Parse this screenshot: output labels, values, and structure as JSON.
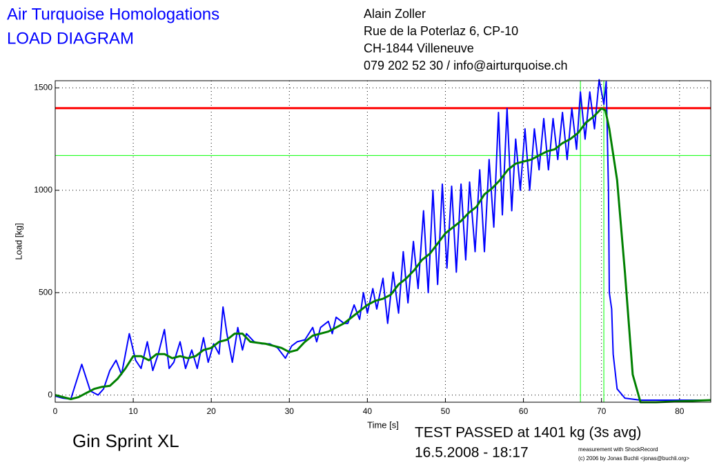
{
  "chart_data": {
    "type": "line",
    "title": "Air Turquoise Homologations",
    "subtitle": "LOAD DIAGRAM",
    "address": [
      "Alain Zoller",
      "Rue de la Poterlaz 6, CP-10",
      "CH-1844 Villeneuve",
      "079 202 52 30 / info@airturquoise.ch"
    ],
    "x_label": "Time [s]",
    "y_label": "Load [kg]",
    "glider": "Gin Sprint XL",
    "result": [
      "TEST PASSED at 1401 kg (3s avg)",
      "16.5.2008 - 18:17"
    ],
    "credits": [
      "measurement with ShockRecord",
      "(c) 2006 by Jonas Buchli <jonas@buchli.org>"
    ],
    "xlim": [
      0,
      84
    ],
    "ylim": [
      -35,
      1535
    ],
    "xticks": [
      0,
      10,
      20,
      30,
      40,
      50,
      60,
      70,
      80
    ],
    "yticks": [
      0,
      500,
      1000,
      1500
    ],
    "grid": true,
    "hlines": [
      {
        "value": 1401,
        "color": "#ff0000"
      },
      {
        "value": 1170,
        "color": "#00ff00"
      }
    ],
    "vlines": [
      {
        "value": 67.3,
        "color": "#00ff00"
      },
      {
        "value": 70.3,
        "color": "#00ff00"
      }
    ],
    "series": [
      {
        "color": "#0000ff",
        "x": [
          0,
          1,
          2,
          3.4,
          4.5,
          5.5,
          6.2,
          7,
          7.8,
          8.5,
          9.5,
          10.3,
          11,
          11.8,
          12.5,
          13.2,
          14,
          14.6,
          15.2,
          16,
          16.7,
          17.5,
          18.2,
          19,
          19.6,
          20.3,
          21,
          21.5,
          22,
          22.7,
          23.4,
          24,
          24.5,
          25.5,
          26.5,
          27.5,
          28.5,
          29.5,
          30.3,
          31,
          32,
          33,
          33.5,
          34,
          35,
          35.5,
          36,
          37,
          37.5,
          38.3,
          39,
          39.5,
          40,
          40.7,
          41.2,
          42,
          42.6,
          43.3,
          44,
          44.6,
          45.2,
          45.9,
          46.5,
          47.2,
          47.8,
          48.4,
          49,
          49.6,
          50.2,
          50.8,
          51.4,
          52,
          52.6,
          53.1,
          53.8,
          54.4,
          55,
          55.6,
          56.2,
          56.8,
          57.3,
          57.9,
          58.5,
          59,
          59.6,
          60.2,
          60.8,
          61.4,
          62,
          62.6,
          63.2,
          63.8,
          64.4,
          65,
          65.6,
          66.2,
          66.8,
          67.3,
          67.9,
          68.5,
          69.1,
          69.7,
          70.3,
          70.6,
          70.9,
          71,
          71.3,
          71.5,
          72,
          73,
          75,
          84
        ],
        "values": [
          -5,
          -15,
          -20,
          150,
          20,
          0,
          30,
          120,
          170,
          100,
          300,
          170,
          130,
          260,
          120,
          200,
          320,
          130,
          160,
          260,
          130,
          220,
          130,
          280,
          160,
          250,
          200,
          430,
          300,
          160,
          330,
          220,
          300,
          260,
          250,
          250,
          230,
          180,
          240,
          260,
          270,
          330,
          260,
          330,
          360,
          300,
          380,
          350,
          350,
          440,
          370,
          500,
          400,
          520,
          420,
          570,
          350,
          600,
          400,
          700,
          450,
          750,
          520,
          900,
          500,
          1000,
          540,
          1030,
          620,
          1020,
          600,
          1030,
          660,
          1040,
          700,
          1100,
          700,
          1150,
          820,
          1380,
          880,
          1400,
          900,
          1250,
          1000,
          1300,
          1000,
          1300,
          1100,
          1350,
          1100,
          1350,
          1150,
          1380,
          1150,
          1400,
          1200,
          1480,
          1250,
          1480,
          1300,
          1540,
          1420,
          1530,
          1000,
          500,
          420,
          200,
          30,
          -15,
          -25,
          -25
        ]
      },
      {
        "color": "#008000",
        "x": [
          0,
          2,
          3,
          4,
          5,
          6,
          7,
          8,
          9,
          10,
          11,
          12,
          13,
          14,
          15,
          16,
          17,
          18,
          19,
          20,
          21,
          22,
          23,
          24,
          25,
          27,
          29,
          30,
          31,
          32,
          33,
          34,
          35,
          36,
          37,
          38,
          39,
          40,
          41,
          42,
          43,
          44,
          45,
          46,
          47,
          48,
          49,
          50,
          51,
          52,
          53,
          54,
          55,
          56,
          57,
          58,
          59,
          60,
          61,
          62,
          63,
          64,
          65,
          66,
          67,
          68,
          69,
          70,
          70.5,
          71,
          72,
          73,
          74,
          75,
          77,
          84
        ],
        "values": [
          0,
          -20,
          -10,
          10,
          30,
          40,
          45,
          80,
          130,
          190,
          190,
          170,
          200,
          200,
          180,
          190,
          180,
          190,
          220,
          230,
          260,
          270,
          300,
          300,
          260,
          250,
          230,
          210,
          220,
          260,
          290,
          300,
          310,
          330,
          350,
          380,
          410,
          440,
          460,
          470,
          490,
          540,
          570,
          610,
          660,
          690,
          740,
          790,
          820,
          850,
          890,
          920,
          980,
          1010,
          1050,
          1100,
          1130,
          1140,
          1150,
          1170,
          1190,
          1200,
          1230,
          1250,
          1280,
          1330,
          1360,
          1400,
          1390,
          1300,
          1050,
          600,
          100,
          -35,
          -35,
          -25
        ]
      }
    ]
  }
}
